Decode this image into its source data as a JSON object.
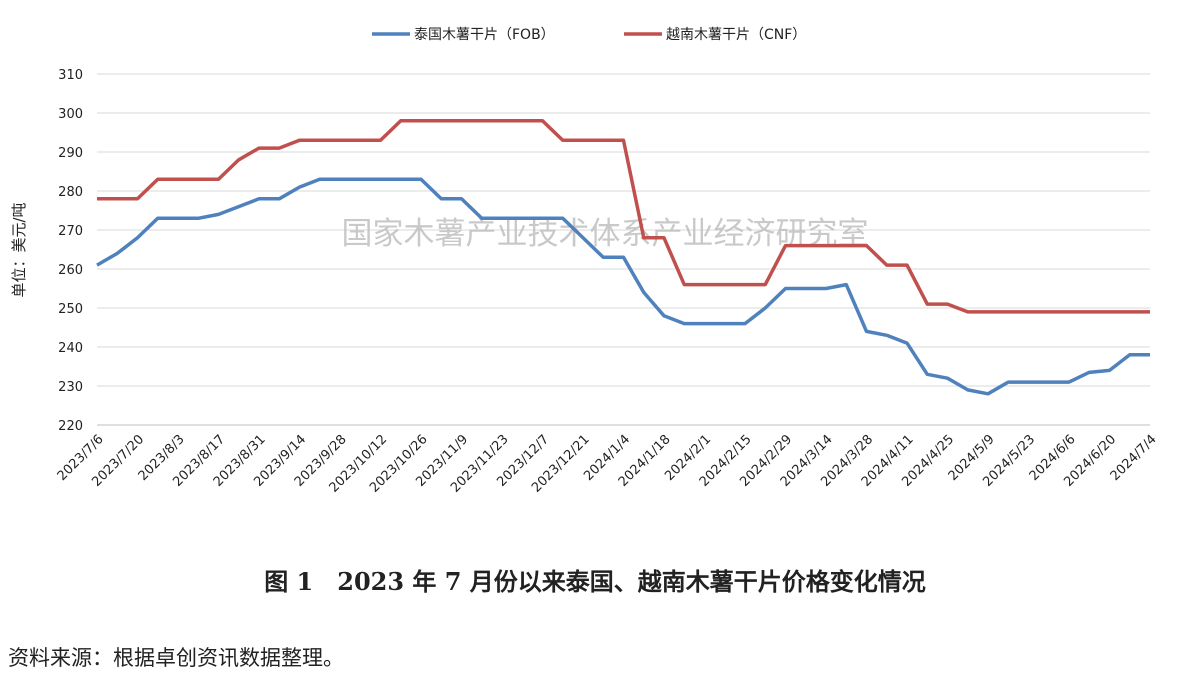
{
  "chart_data": {
    "type": "line",
    "watermark": "国家木薯产业技术体系产业经济研究室",
    "y_label": "单位：美元/吨",
    "caption": "图 1　2023 年 7 月份以来泰国、越南木薯干片价格变化情况",
    "source": "资料来源：根据卓创资讯数据整理。",
    "categories": [
      "2023/7/6",
      null,
      "2023/7/20",
      null,
      "2023/8/3",
      null,
      "2023/8/17",
      null,
      "2023/8/31",
      null,
      "2023/9/14",
      null,
      "2023/9/28",
      null,
      "2023/10/12",
      null,
      "2023/10/26",
      null,
      "2023/11/9",
      null,
      "2023/11/23",
      null,
      "2023/12/7",
      null,
      "2023/12/21",
      null,
      "2024/1/4",
      null,
      "2024/1/18",
      null,
      "2024/2/1",
      null,
      "2024/2/15",
      null,
      "2024/2/29",
      null,
      "2024/3/14",
      null,
      "2024/3/28",
      null,
      "2024/4/11",
      null,
      "2024/4/25",
      null,
      "2024/5/9",
      null,
      "2024/5/23",
      null,
      "2024/6/6",
      null,
      "2024/6/20",
      null,
      "2024/7/4"
    ],
    "series": [
      {
        "name": "泰国木薯干片（FOB）",
        "color": "#4f81bd",
        "values": [
          261,
          264,
          268,
          273,
          273,
          273,
          274,
          276,
          278,
          278,
          281,
          283,
          283,
          283,
          283,
          283,
          283,
          278,
          278,
          273,
          273,
          273,
          273,
          273,
          268,
          263,
          263,
          254,
          248,
          246,
          246,
          246,
          246,
          250,
          255,
          255,
          255,
          256,
          244,
          243,
          241,
          233,
          232,
          229,
          228,
          231,
          231,
          231,
          231,
          233.5,
          234,
          238,
          238
        ]
      },
      {
        "name": "越南木薯干片（CNF）",
        "color": "#c0504d",
        "values": [
          278,
          278,
          278,
          283,
          283,
          283,
          283,
          288,
          291,
          291,
          293,
          293,
          293,
          293,
          293,
          298,
          298,
          298,
          298,
          298,
          298,
          298,
          298,
          293,
          293,
          293,
          293,
          268,
          268,
          256,
          256,
          256,
          256,
          256,
          266,
          266,
          266,
          266,
          266,
          261,
          261,
          251,
          251,
          249,
          249,
          249,
          249,
          249,
          249,
          249,
          249,
          249,
          249
        ]
      }
    ],
    "ylim": [
      220,
      310
    ],
    "yticks": [
      220,
      230,
      240,
      250,
      260,
      270,
      280,
      290,
      300,
      310
    ],
    "grid": true
  }
}
